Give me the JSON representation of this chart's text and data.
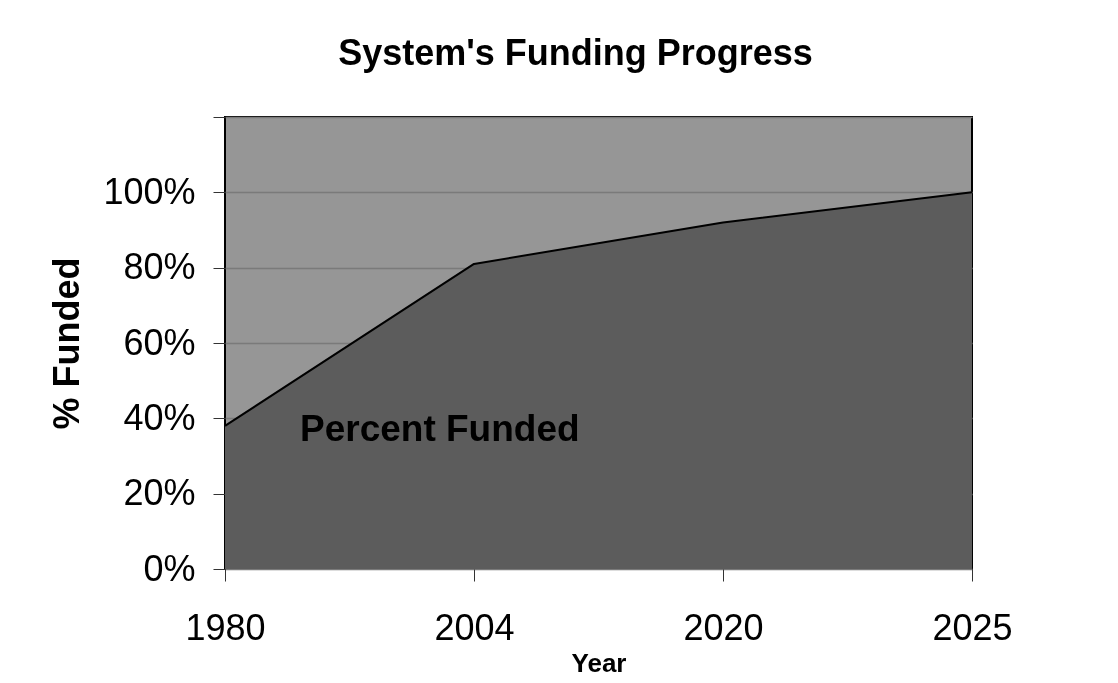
{
  "chart_data": {
    "type": "area",
    "title": "System's Funding Progress",
    "xlabel": "Year",
    "ylabel": "% Funded",
    "categories": [
      "1980",
      "2004",
      "2020",
      "2025"
    ],
    "series": [
      {
        "name": "Percent Funded",
        "color": "#5c5c5c",
        "values": [
          38,
          81,
          92,
          100
        ]
      }
    ],
    "ylim": [
      0,
      120
    ],
    "yticks": [
      {
        "value": 0,
        "label": "0%"
      },
      {
        "value": 20,
        "label": "20%"
      },
      {
        "value": 40,
        "label": "40%"
      },
      {
        "value": 60,
        "label": "60%"
      },
      {
        "value": 80,
        "label": "80%"
      },
      {
        "value": 100,
        "label": "100%"
      },
      {
        "value": 120,
        "label": null
      }
    ],
    "grid": "y"
  }
}
